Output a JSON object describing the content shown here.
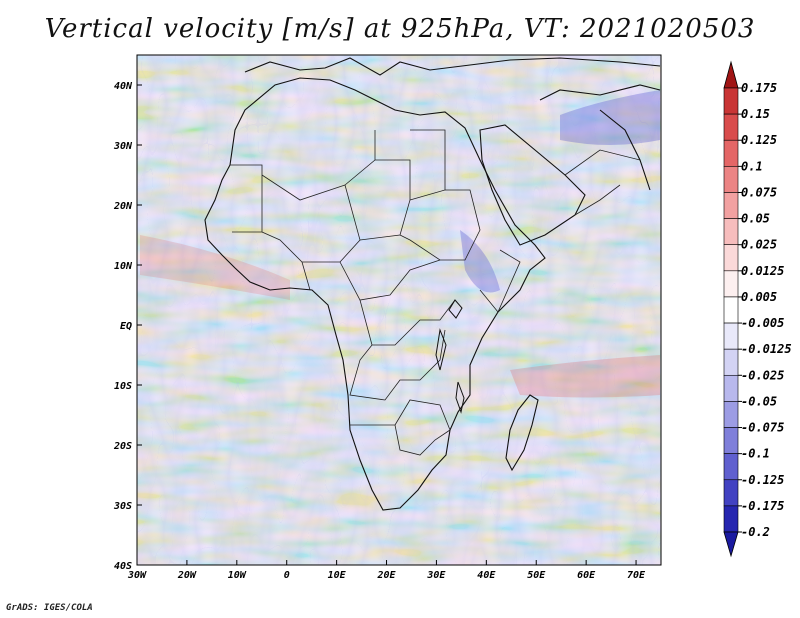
{
  "title": "Vertical velocity [m/s] at 925hPa, VT: 2021020503",
  "credit": "GrADS: IGES/COLA",
  "map": {
    "region": "Africa",
    "lon_range": [
      -30,
      75
    ],
    "lat_range": [
      -40,
      45
    ],
    "lon_ticks": [
      {
        "value": -30,
        "label": "30W"
      },
      {
        "value": -20,
        "label": "20W"
      },
      {
        "value": -10,
        "label": "10W"
      },
      {
        "value": 0,
        "label": "0"
      },
      {
        "value": 10,
        "label": "10E"
      },
      {
        "value": 20,
        "label": "20E"
      },
      {
        "value": 30,
        "label": "30E"
      },
      {
        "value": 40,
        "label": "40E"
      },
      {
        "value": 50,
        "label": "50E"
      },
      {
        "value": 60,
        "label": "60E"
      },
      {
        "value": 70,
        "label": "70E"
      }
    ],
    "lat_ticks": [
      {
        "value": 40,
        "label": "40N"
      },
      {
        "value": 30,
        "label": "30N"
      },
      {
        "value": 20,
        "label": "20N"
      },
      {
        "value": 10,
        "label": "10N"
      },
      {
        "value": 0,
        "label": "EQ"
      },
      {
        "value": -10,
        "label": "10S"
      },
      {
        "value": -20,
        "label": "20S"
      },
      {
        "value": -30,
        "label": "30S"
      },
      {
        "value": -40,
        "label": "40S"
      }
    ]
  },
  "colorbar": {
    "levels": [
      {
        "label": "0.175",
        "color": "#b32020"
      },
      {
        "label": "0.15",
        "color": "#c93535"
      },
      {
        "label": "0.125",
        "color": "#d94c4c"
      },
      {
        "label": "0.1",
        "color": "#e46666"
      },
      {
        "label": "0.075",
        "color": "#ec8484"
      },
      {
        "label": "0.05",
        "color": "#f2a1a1"
      },
      {
        "label": "0.025",
        "color": "#f7bdbd"
      },
      {
        "label": "0.0125",
        "color": "#fbd9d9"
      },
      {
        "label": "0.005",
        "color": "#fdf0f0"
      },
      {
        "label": "-0.005",
        "color": "#ffffff"
      },
      {
        "label": "-0.0125",
        "color": "#e9e9fa"
      },
      {
        "label": "-0.025",
        "color": "#d3d3f4"
      },
      {
        "label": "-0.05",
        "color": "#b8b8ed"
      },
      {
        "label": "-0.075",
        "color": "#9c9ce4"
      },
      {
        "label": "-0.1",
        "color": "#7f7fda"
      },
      {
        "label": "-0.125",
        "color": "#6060cf"
      },
      {
        "label": "-0.175",
        "color": "#4242c2"
      },
      {
        "label": "-0.2",
        "color": "#2626b0"
      }
    ],
    "top_arrow_color": "#a01515",
    "bottom_arrow_color": "#1a1aa0"
  }
}
